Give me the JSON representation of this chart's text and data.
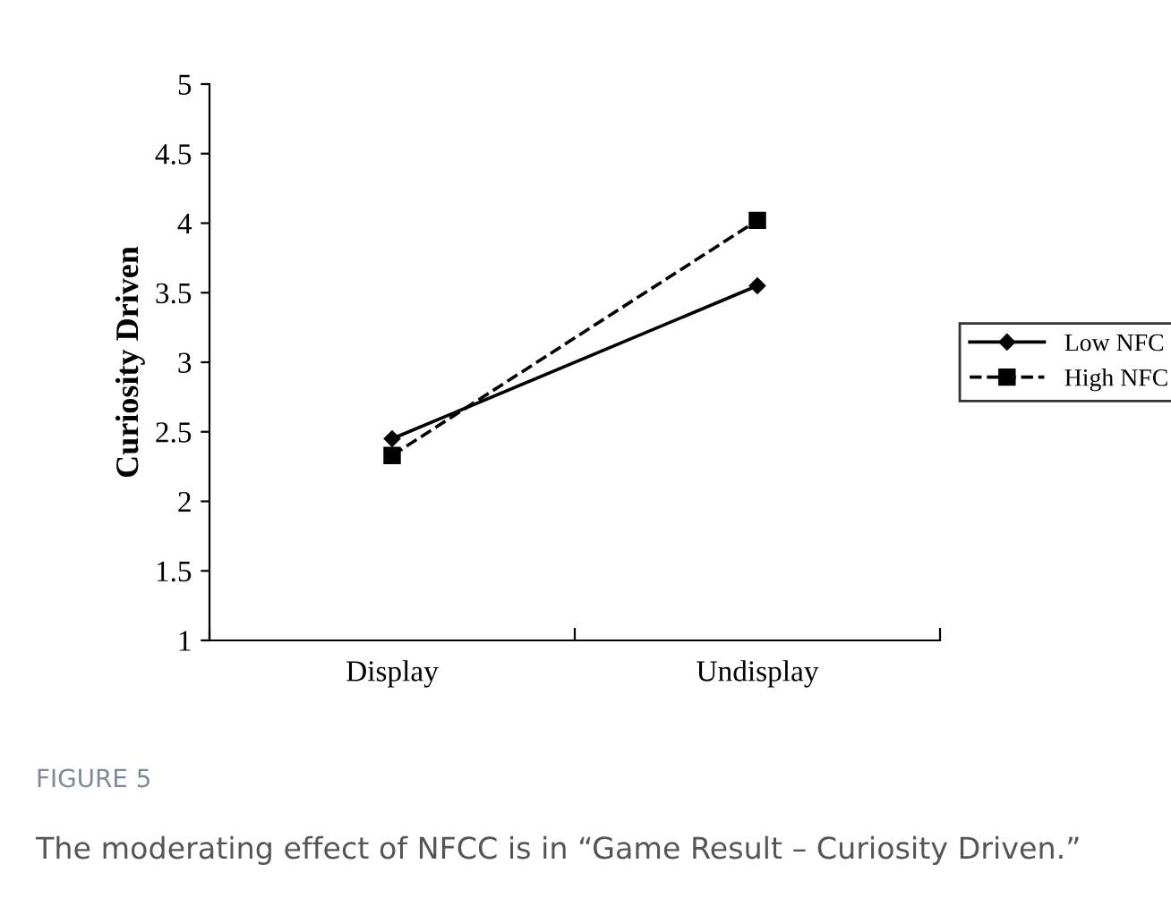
{
  "chart_data": {
    "type": "line",
    "ylabel": "Curiosity Driven",
    "categories": [
      "Display",
      "Undisplay"
    ],
    "series": [
      {
        "name": "Low NFC",
        "color": "#000000",
        "values": [
          2.45,
          3.55
        ],
        "marker": "diamond",
        "line_style": "solid"
      },
      {
        "name": "High NFC",
        "color": "#000000",
        "values": [
          2.33,
          4.02
        ],
        "marker": "square",
        "line_style": "dashed"
      }
    ],
    "ylim": [
      1,
      5
    ],
    "yticks": [
      1,
      1.5,
      2,
      2.5,
      3,
      3.5,
      4,
      4.5,
      5
    ],
    "grid": false,
    "legend": "right",
    "annotations": [
      "FIGURE 5",
      "The moderating effect of NFCC is in “Game Result – Curiosity Driven.”"
    ]
  }
}
